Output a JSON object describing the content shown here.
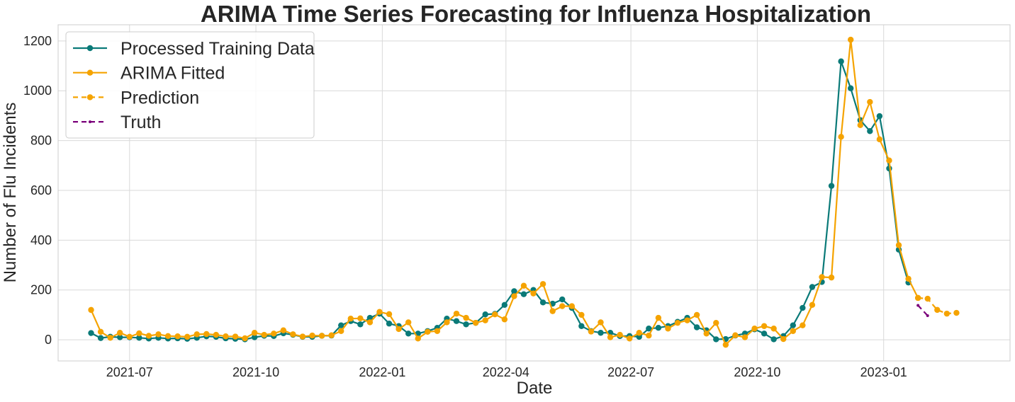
{
  "chart_data": {
    "type": "line",
    "title": "ARIMA Time Series Forecasting for Influenza Hospitalization",
    "xlabel": "Date",
    "ylabel": "Number of Flu Incidents",
    "xlim": [
      "2021-05-10",
      "2023-04-03"
    ],
    "ylim": [
      -85,
      1265
    ],
    "x_ticks": [
      "2021-07-01",
      "2021-10-01",
      "2022-01-01",
      "2022-04-01",
      "2022-07-01",
      "2022-10-01",
      "2023-01-01"
    ],
    "x_tick_labels": [
      "2021-07",
      "2021-10",
      "2022-01",
      "2022-04",
      "2022-07",
      "2022-10",
      "2023-01"
    ],
    "y_ticks": [
      0,
      200,
      400,
      600,
      800,
      1000,
      1200
    ],
    "y_tick_labels": [
      "0",
      "200",
      "400",
      "600",
      "800",
      "1000",
      "1200"
    ],
    "grid": true,
    "legend_position": "top-left",
    "series": [
      {
        "name": "Processed Training Data",
        "color": "#0a7a78",
        "line_style": "solid",
        "x": [
          "2021-06-03",
          "2021-06-10",
          "2021-06-17",
          "2021-06-24",
          "2021-07-01",
          "2021-07-08",
          "2021-07-15",
          "2021-07-22",
          "2021-07-29",
          "2021-08-05",
          "2021-08-12",
          "2021-08-19",
          "2021-08-26",
          "2021-09-02",
          "2021-09-09",
          "2021-09-16",
          "2021-09-23",
          "2021-09-30",
          "2021-10-07",
          "2021-10-14",
          "2021-10-21",
          "2021-10-28",
          "2021-11-04",
          "2021-11-11",
          "2021-11-18",
          "2021-11-25",
          "2021-12-02",
          "2021-12-09",
          "2021-12-16",
          "2021-12-23",
          "2021-12-30",
          "2022-01-06",
          "2022-01-13",
          "2022-01-20",
          "2022-01-27",
          "2022-02-03",
          "2022-02-10",
          "2022-02-17",
          "2022-02-24",
          "2022-03-03",
          "2022-03-10",
          "2022-03-17",
          "2022-03-24",
          "2022-03-31",
          "2022-04-07",
          "2022-04-14",
          "2022-04-21",
          "2022-04-28",
          "2022-05-05",
          "2022-05-12",
          "2022-05-19",
          "2022-05-26",
          "2022-06-02",
          "2022-06-09",
          "2022-06-16",
          "2022-06-23",
          "2022-06-30",
          "2022-07-07",
          "2022-07-14",
          "2022-07-21",
          "2022-07-28",
          "2022-08-04",
          "2022-08-11",
          "2022-08-18",
          "2022-08-25",
          "2022-09-01",
          "2022-09-08",
          "2022-09-15",
          "2022-09-22",
          "2022-09-29",
          "2022-10-06",
          "2022-10-13",
          "2022-10-20",
          "2022-10-27",
          "2022-11-03",
          "2022-11-10",
          "2022-11-17",
          "2022-11-24",
          "2022-12-01",
          "2022-12-08",
          "2022-12-15",
          "2022-12-22",
          "2022-12-29",
          "2023-01-05",
          "2023-01-12",
          "2023-01-19"
        ],
        "values": [
          27,
          7,
          12,
          10,
          10,
          8,
          5,
          8,
          5,
          6,
          4,
          8,
          14,
          12,
          6,
          4,
          2,
          10,
          16,
          15,
          26,
          20,
          12,
          12,
          16,
          17,
          58,
          75,
          62,
          88,
          105,
          65,
          55,
          25,
          25,
          35,
          48,
          85,
          75,
          62,
          68,
          102,
          104,
          140,
          195,
          183,
          200,
          150,
          145,
          162,
          128,
          55,
          35,
          28,
          28,
          15,
          15,
          12,
          45,
          48,
          55,
          72,
          88,
          50,
          38,
          2,
          3,
          17,
          25,
          42,
          25,
          2,
          15,
          58,
          128,
          212,
          232,
          618,
          1118,
          1010,
          882,
          838,
          898,
          688,
          362,
          230
        ]
      },
      {
        "name": "ARIMA Fitted",
        "color": "#f5a300",
        "line_style": "solid",
        "x": [
          "2021-06-03",
          "2021-06-10",
          "2021-06-17",
          "2021-06-24",
          "2021-07-01",
          "2021-07-08",
          "2021-07-15",
          "2021-07-22",
          "2021-07-29",
          "2021-08-05",
          "2021-08-12",
          "2021-08-19",
          "2021-08-26",
          "2021-09-02",
          "2021-09-09",
          "2021-09-16",
          "2021-09-23",
          "2021-09-30",
          "2021-10-07",
          "2021-10-14",
          "2021-10-21",
          "2021-10-28",
          "2021-11-04",
          "2021-11-11",
          "2021-11-18",
          "2021-11-25",
          "2021-12-02",
          "2021-12-09",
          "2021-12-16",
          "2021-12-23",
          "2021-12-30",
          "2022-01-06",
          "2022-01-13",
          "2022-01-20",
          "2022-01-27",
          "2022-02-03",
          "2022-02-10",
          "2022-02-17",
          "2022-02-24",
          "2022-03-03",
          "2022-03-10",
          "2022-03-17",
          "2022-03-24",
          "2022-03-31",
          "2022-04-07",
          "2022-04-14",
          "2022-04-21",
          "2022-04-28",
          "2022-05-05",
          "2022-05-12",
          "2022-05-19",
          "2022-05-26",
          "2022-06-02",
          "2022-06-09",
          "2022-06-16",
          "2022-06-23",
          "2022-06-30",
          "2022-07-07",
          "2022-07-14",
          "2022-07-21",
          "2022-07-28",
          "2022-08-04",
          "2022-08-11",
          "2022-08-18",
          "2022-08-25",
          "2022-09-01",
          "2022-09-08",
          "2022-09-15",
          "2022-09-22",
          "2022-09-29",
          "2022-10-06",
          "2022-10-13",
          "2022-10-20",
          "2022-10-27",
          "2022-11-03",
          "2022-11-10",
          "2022-11-17",
          "2022-11-24",
          "2022-12-01",
          "2022-12-08",
          "2022-12-15",
          "2022-12-22",
          "2022-12-29",
          "2023-01-05",
          "2023-01-12",
          "2023-01-19",
          "2023-01-26"
        ],
        "values": [
          120,
          32,
          8,
          28,
          12,
          26,
          16,
          22,
          15,
          14,
          12,
          22,
          23,
          20,
          14,
          13,
          6,
          28,
          20,
          25,
          38,
          22,
          13,
          17,
          16,
          18,
          35,
          85,
          86,
          70,
          112,
          103,
          43,
          70,
          5,
          32,
          35,
          70,
          105,
          88,
          68,
          78,
          102,
          82,
          175,
          217,
          186,
          224,
          115,
          135,
          135,
          100,
          33,
          70,
          10,
          20,
          5,
          28,
          17,
          88,
          45,
          68,
          78,
          100,
          25,
          68,
          -20,
          18,
          10,
          45,
          55,
          45,
          3,
          35,
          58,
          140,
          252,
          250,
          815,
          1205,
          862,
          955,
          805,
          720,
          380,
          245,
          168
        ]
      },
      {
        "name": "Prediction",
        "color": "#f5a300",
        "line_style": "dashed",
        "x": [
          "2023-01-26",
          "2023-02-02",
          "2023-02-09",
          "2023-02-16",
          "2023-02-23"
        ],
        "values": [
          168,
          165,
          120,
          105,
          108
        ]
      },
      {
        "name": "Truth",
        "color": "#7a007a",
        "line_style": "dashed",
        "x": [
          "2023-01-26",
          "2023-02-02"
        ],
        "values": [
          138,
          97
        ]
      }
    ]
  }
}
